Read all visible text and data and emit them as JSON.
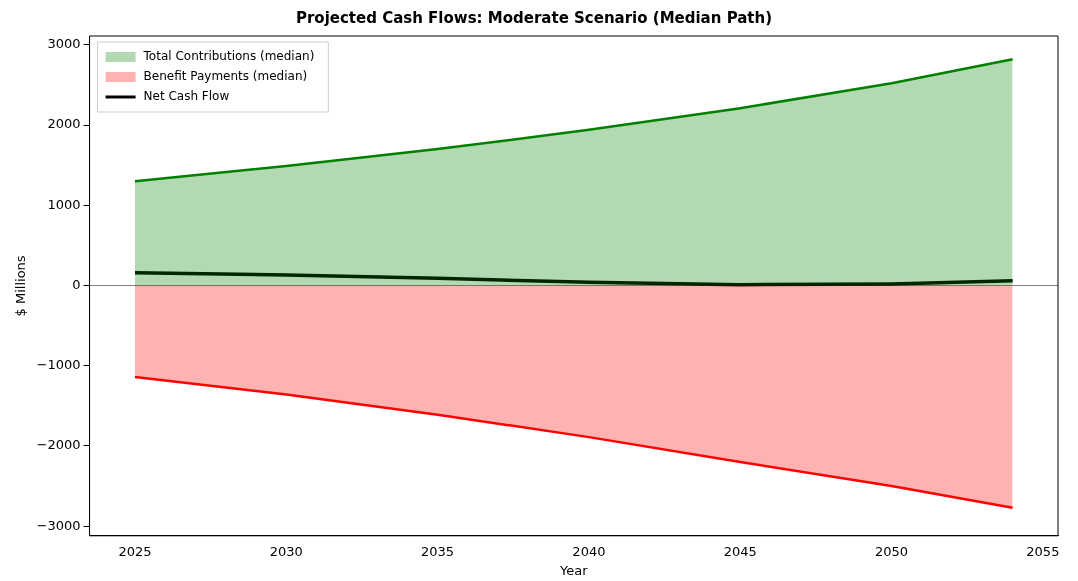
{
  "chart_data": {
    "type": "area",
    "title": "Projected Cash Flows: Moderate Scenario (Median Path)",
    "xlabel": "Year",
    "ylabel": "$ Millions",
    "x": [
      2025,
      2030,
      2035,
      2040,
      2045,
      2050,
      2054
    ],
    "series": [
      {
        "name": "Total Contributions (median)",
        "type": "area",
        "color": "#008000",
        "values": [
          1300,
          1490,
          1700,
          1940,
          2210,
          2520,
          2820
        ]
      },
      {
        "name": "Benefit Payments (median)",
        "type": "area",
        "color": "#ff0000",
        "values": [
          -1140,
          -1360,
          -1610,
          -1890,
          -2200,
          -2500,
          -2770
        ]
      },
      {
        "name": "Net Cash Flow",
        "type": "line",
        "color": "#000000",
        "values": [
          160,
          130,
          90,
          40,
          10,
          20,
          60
        ]
      }
    ],
    "xlim": [
      2023.5,
      2055.5
    ],
    "xticks": [
      2025,
      2030,
      2035,
      2040,
      2045,
      2050,
      2055
    ],
    "ylim": [
      -3120,
      3110
    ],
    "yticks": [
      -3000,
      -2000,
      -1000,
      0,
      1000,
      2000,
      3000
    ],
    "ref_lines": [
      {
        "axis": "y",
        "value": 0,
        "color": "#808080"
      }
    ],
    "grid": false,
    "legend": "top left"
  }
}
